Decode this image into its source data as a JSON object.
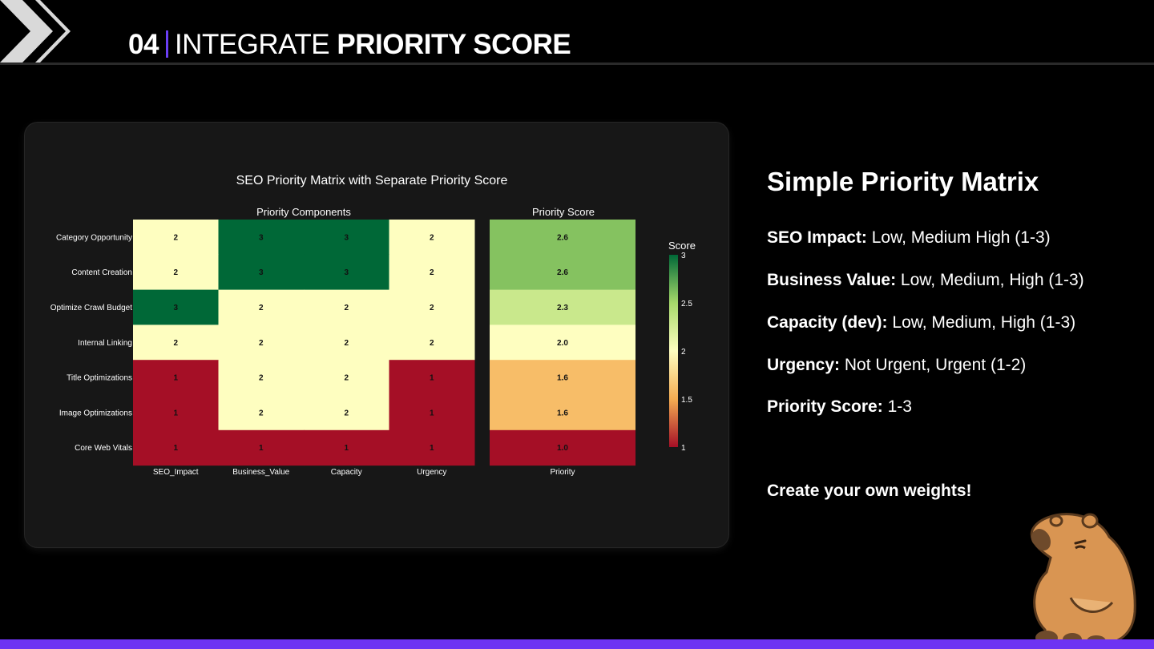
{
  "header": {
    "number": "04",
    "title_light": "INTEGRATE",
    "title_bold": "PRIORITY SCORE"
  },
  "chart_data": {
    "type": "heatmap",
    "title": "SEO Priority Matrix with Separate Priority Score",
    "subplot_titles": [
      "Priority Components",
      "Priority Score"
    ],
    "rows": [
      "Category Opportunity",
      "Content Creation",
      "Optimize Crawl Budget",
      "Internal Linking",
      "Title Optimizations",
      "Image Optimizations",
      "Core Web Vitals"
    ],
    "component_columns": [
      "SEO_Impact",
      "Business_Value",
      "Capacity",
      "Urgency"
    ],
    "components": [
      [
        2,
        3,
        3,
        2
      ],
      [
        2,
        3,
        3,
        2
      ],
      [
        3,
        2,
        2,
        2
      ],
      [
        2,
        2,
        2,
        2
      ],
      [
        1,
        2,
        2,
        1
      ],
      [
        1,
        2,
        2,
        1
      ],
      [
        1,
        1,
        1,
        1
      ]
    ],
    "score_column": [
      "Priority"
    ],
    "priority_scores": [
      "2.6",
      "2.6",
      "2.3",
      "2.0",
      "1.6",
      "1.6",
      "1.0"
    ],
    "colorbar": {
      "title": "Score",
      "ticks": [
        "3",
        "2.5",
        "2",
        "1.5",
        "1"
      ],
      "range": [
        1,
        3
      ]
    },
    "colorscale": [
      "#a50f26",
      "#f5ad52",
      "#fefec0",
      "#a6d96a",
      "#006837"
    ]
  },
  "panel": {
    "heading": "Simple Priority Matrix",
    "items": [
      {
        "label": "SEO Impact:",
        "value": "Low, Medium High (1-3)"
      },
      {
        "label": "Business Value:",
        "value": "Low, Medium, High (1-3)"
      },
      {
        "label": "Capacity (dev):",
        "value": "Low, Medium, High (1-3)"
      },
      {
        "label": "Urgency:",
        "value": "Not Urgent, Urgent (1-2)"
      },
      {
        "label": "Priority Score:",
        "value": "1-3"
      }
    ],
    "cta": "Create your own weights!"
  },
  "colors": {
    "accent": "#6d33f2",
    "background": "#000000",
    "card": "#171717"
  }
}
